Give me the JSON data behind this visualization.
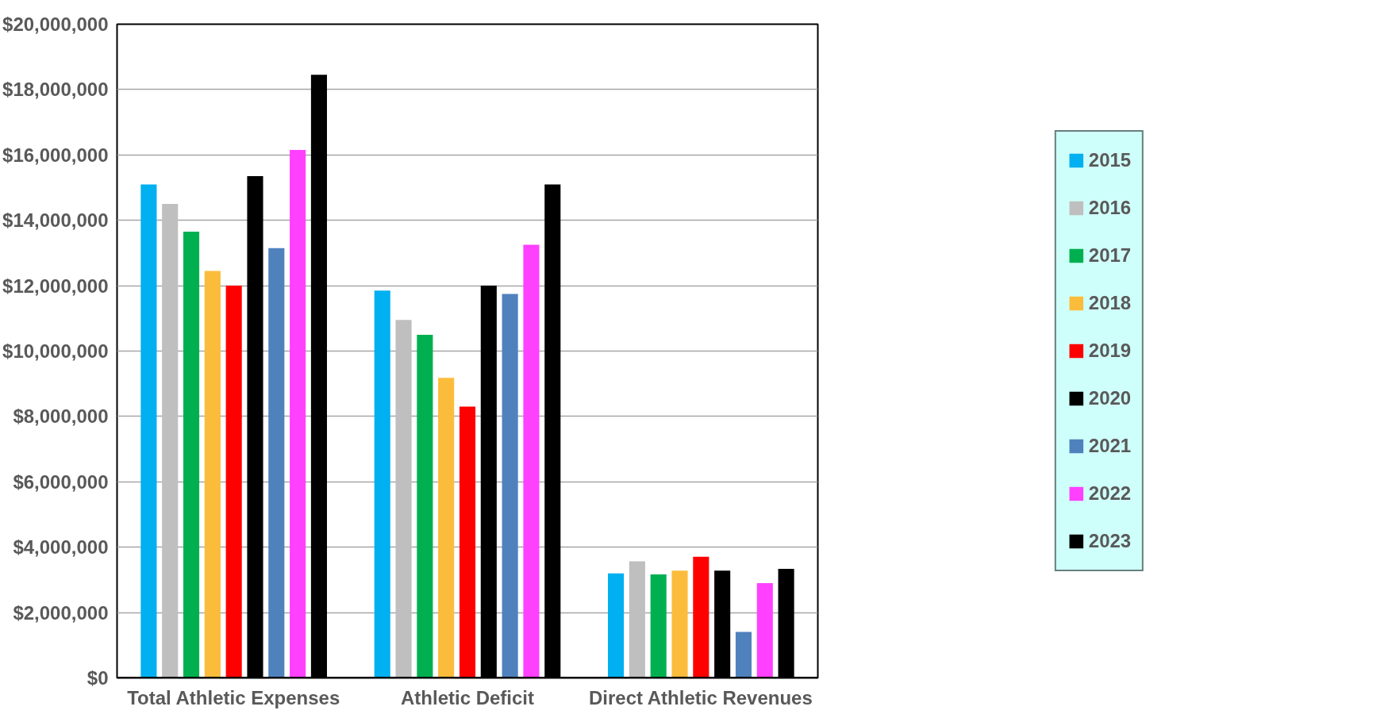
{
  "chart_data": {
    "type": "bar",
    "categories": [
      "Total Athletic Expenses",
      "Athletic Deficit",
      "Direct Athletic Revenues"
    ],
    "series": [
      {
        "name": "2015",
        "color": "#00b0f0",
        "values": [
          15100000,
          11850000,
          3200000
        ]
      },
      {
        "name": "2016",
        "color": "#bfbfbf",
        "values": [
          14500000,
          10950000,
          3570000
        ]
      },
      {
        "name": "2017",
        "color": "#00b050",
        "values": [
          13650000,
          10500000,
          3170000
        ]
      },
      {
        "name": "2018",
        "color": "#fbbc3b",
        "values": [
          12450000,
          9180000,
          3280000
        ]
      },
      {
        "name": "2019",
        "color": "#ff0000",
        "values": [
          12000000,
          8300000,
          3710000
        ]
      },
      {
        "name": "2020",
        "color": "#000000",
        "values": [
          15350000,
          12000000,
          3280000
        ]
      },
      {
        "name": "2021",
        "color": "#4f81bd",
        "values": [
          13150000,
          11750000,
          1410000
        ]
      },
      {
        "name": "2022",
        "color": "#ff40ff",
        "values": [
          16150000,
          13250000,
          2900000
        ]
      },
      {
        "name": "2023",
        "color": "#000000",
        "values": [
          18450000,
          15100000,
          3340000
        ]
      }
    ],
    "ylim": [
      0,
      20000000
    ],
    "yticks": [
      {
        "value": 0,
        "label": "$0"
      },
      {
        "value": 2000000,
        "label": "$2,000,000"
      },
      {
        "value": 4000000,
        "label": "$4,000,000"
      },
      {
        "value": 6000000,
        "label": "$6,000,000"
      },
      {
        "value": 8000000,
        "label": "$8,000,000"
      },
      {
        "value": 10000000,
        "label": "$10,000,000"
      },
      {
        "value": 12000000,
        "label": "$12,000,000"
      },
      {
        "value": 14000000,
        "label": "$14,000,000"
      },
      {
        "value": 16000000,
        "label": "$16,000,000"
      },
      {
        "value": 18000000,
        "label": "$18,000,000"
      },
      {
        "value": 20000000,
        "label": "$20,000,000"
      }
    ],
    "grid": "y",
    "legend": "right"
  }
}
